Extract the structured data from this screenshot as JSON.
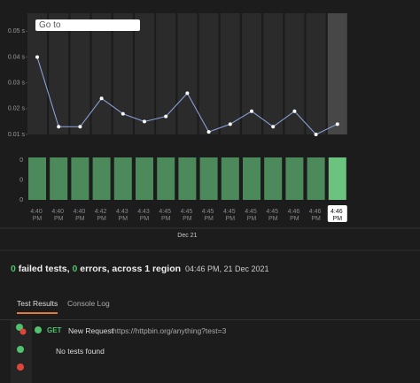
{
  "search_placeholder": "Go to",
  "chart_data": [
    {
      "type": "line",
      "color": "#8fa9e4",
      "highlight_color": "#474747",
      "categories": [
        "4:40 PM",
        "4:40 PM",
        "4:40 PM",
        "4:42 PM",
        "4:43 PM",
        "4:43 PM",
        "4:45 PM",
        "4:45 PM",
        "4:45 PM",
        "4:45 PM",
        "4:45 PM",
        "4:45 PM",
        "4:46 PM",
        "4:46 PM",
        "4:46 PM"
      ],
      "values": [
        0.04,
        0.013,
        0.013,
        0.024,
        0.018,
        0.015,
        0.017,
        0.026,
        0.011,
        0.014,
        0.019,
        0.013,
        0.019,
        0.01,
        0.014
      ],
      "ylim": [
        0.01,
        0.057
      ],
      "yticks": [
        {
          "value": 0.01,
          "label": "0.01 s"
        },
        {
          "value": 0.02,
          "label": "0.02 s"
        },
        {
          "value": 0.03,
          "label": "0.03 s"
        },
        {
          "value": 0.04,
          "label": "0.04 s"
        },
        {
          "value": 0.05,
          "label": "0.05 s"
        }
      ],
      "xlabel": "Dec 21"
    },
    {
      "type": "bar",
      "color": "#4d8a5b",
      "highlight_color": "#6cc27f",
      "values": [
        1,
        1,
        1,
        1,
        1,
        1,
        1,
        1,
        1,
        1,
        1,
        1,
        1,
        1,
        1
      ],
      "ylim": [
        0,
        1
      ],
      "axis_labels": [
        "0",
        "0",
        "0"
      ]
    }
  ],
  "summary": {
    "failed": "0",
    "failed_label": "failed tests,",
    "errors": "0",
    "errors_label": "errors, across 1 region",
    "timestamp": "04:46 PM, 21 Dec 2021"
  },
  "tabs": [
    "Test Results",
    "Console Log"
  ],
  "request": {
    "method": "GET",
    "name": "New Request",
    "url": "https://httpbin.org/anything?test=3"
  },
  "empty_message": "No tests found"
}
